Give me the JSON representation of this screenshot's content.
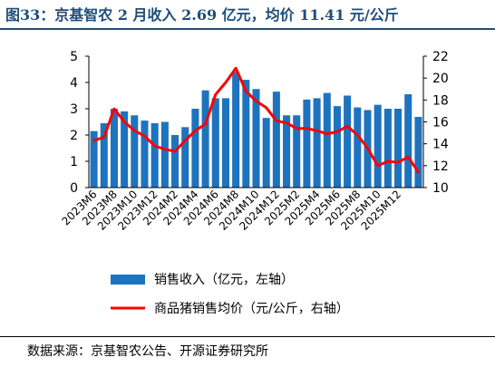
{
  "title": "图33：京基智农 2 月收入 2.69 亿元，均价 11.41 元/公斤",
  "source": "数据来源：京基智农公告、开源证券研究所",
  "colors": {
    "bar": "#1e73be",
    "line": "#ff0000",
    "title": "#1f4e79"
  },
  "chart_data": {
    "type": "bar+line",
    "title": "",
    "categories": [
      "2023M6",
      "2023M7",
      "2023M8",
      "2023M9",
      "2023M10",
      "2023M11",
      "2023M12",
      "2024M1",
      "2024M2",
      "2024M3",
      "2024M4",
      "2024M5",
      "2024M6",
      "2024M7",
      "2024M8",
      "2024M9",
      "2024M10",
      "2024M11",
      "2024M12",
      "2025M1",
      "2025M2",
      "2025M3",
      "2025M4",
      "2025M5",
      "2025M6",
      "2025M7",
      "2025M8",
      "2025M9",
      "2025M10",
      "2025M11",
      "2025M12",
      "2026M1",
      "2026M2"
    ],
    "tick_labels": [
      "2023M6",
      "2023M8",
      "2023M10",
      "2023M12",
      "2024M2",
      "2024M4",
      "2024M6",
      "2024M8",
      "2024M10",
      "2024M12",
      "2025M2",
      "2025M4",
      "2025M6",
      "2025M8",
      "2025M10",
      "2025M12"
    ],
    "series": [
      {
        "name": "销售收入（亿元，左轴）",
        "type": "bar",
        "axis": "left",
        "values": [
          2.15,
          2.45,
          3.0,
          2.9,
          2.75,
          2.55,
          2.45,
          2.5,
          2.0,
          2.3,
          3.0,
          3.7,
          3.4,
          3.4,
          4.4,
          4.1,
          3.75,
          2.65,
          3.65,
          2.75,
          2.75,
          3.35,
          3.4,
          3.6,
          3.1,
          3.5,
          3.05,
          2.95,
          3.15,
          3.0,
          3.0,
          3.55,
          2.69
        ]
      },
      {
        "name": "商品猪销售均价（元/公斤，右轴）",
        "type": "line",
        "axis": "right",
        "values": [
          14.3,
          14.6,
          17.2,
          16.0,
          15.2,
          14.7,
          13.8,
          13.5,
          13.3,
          14.3,
          15.2,
          15.8,
          18.5,
          19.6,
          20.9,
          18.8,
          17.9,
          17.3,
          16.1,
          15.9,
          15.4,
          15.4,
          15.2,
          14.9,
          15.1,
          15.6,
          14.8,
          13.6,
          12.0,
          12.4,
          12.3,
          12.8,
          11.41
        ]
      }
    ],
    "ylim_left": [
      0,
      5
    ],
    "yticks_left": [
      0,
      1,
      2,
      3,
      4,
      5
    ],
    "ylim_right": [
      10,
      22
    ],
    "yticks_right": [
      10,
      12,
      14,
      16,
      18,
      20,
      22
    ],
    "grid": false,
    "legend_position": "bottom"
  }
}
